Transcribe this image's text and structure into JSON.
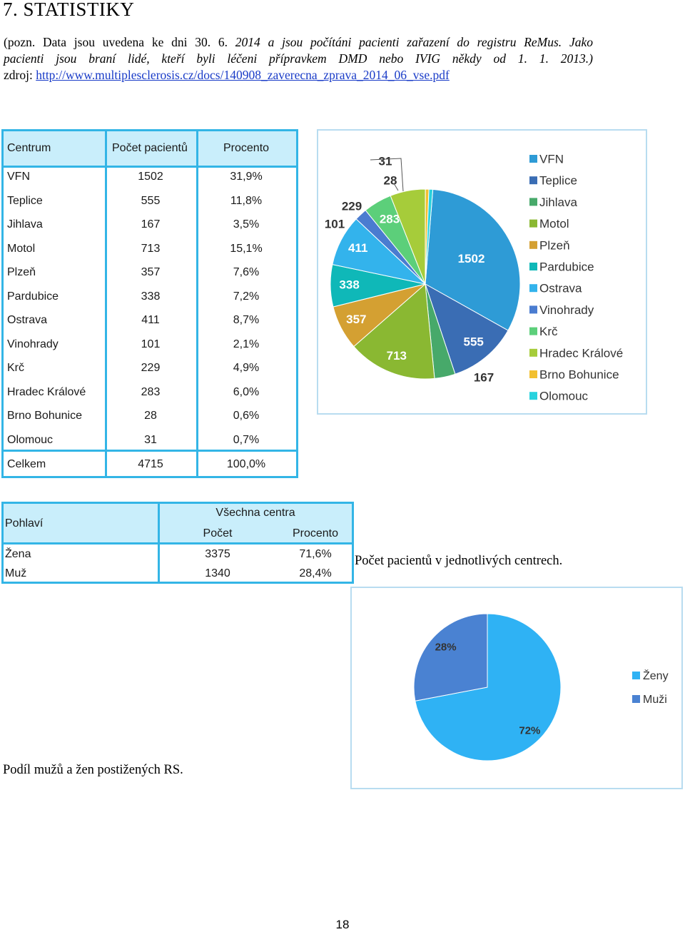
{
  "heading": "7.  STATISTIKY",
  "intro": {
    "line1_plain": "(pozn. Data jsou uvedena ke dni 30. 6. ",
    "line1_italic": "2014 a jsou počítáni pacienti zařazení do registru ReMus. Jako",
    "line2_italic": "pacienti  jsou  braní  lidé,  kteří  byli  léčeni  přípravkem  DMD  nebo  IVIG  někdy  od  1.  1.  2013.)",
    "source_label": "zdroj: ",
    "source_url": "http://www.multiplesclerosis.cz/docs/140908_zaverecna_zprava_2014_06_vse.pdf"
  },
  "centers_table": {
    "headers": [
      "Centrum",
      "Počet pacientů",
      "Procento"
    ],
    "rows": [
      [
        "VFN",
        "1502",
        "31,9%"
      ],
      [
        "Teplice",
        "555",
        "11,8%"
      ],
      [
        "Jihlava",
        "167",
        "3,5%"
      ],
      [
        "Motol",
        "713",
        "15,1%"
      ],
      [
        "Plzeň",
        "357",
        "7,6%"
      ],
      [
        "Pardubice",
        "338",
        "7,2%"
      ],
      [
        "Ostrava",
        "411",
        "8,7%"
      ],
      [
        "Vinohrady",
        "101",
        "2,1%"
      ],
      [
        "Krč",
        "229",
        "4,9%"
      ],
      [
        "Hradec Králové",
        "283",
        "6,0%"
      ],
      [
        "Brno Bohunice",
        "28",
        "0,6%"
      ],
      [
        "Olomouc",
        "31",
        "0,7%"
      ]
    ],
    "total": [
      "Celkem",
      "4715",
      "100,0%"
    ]
  },
  "gender_table": {
    "col1_header": "Pohlaví",
    "group_header": "Všechna centra",
    "sub_headers": [
      "Počet",
      "Procento"
    ],
    "rows": [
      [
        "Žena",
        "3375",
        "71,6%"
      ],
      [
        "Muž",
        "1340",
        "28,4%"
      ]
    ]
  },
  "caption_centers": "Počet pacientů v jednotlivých centrech.",
  "caption_gender": "Podíl mužů a žen postižených RS.",
  "page_number": "18",
  "chart_data": [
    {
      "type": "pie",
      "categories": [
        "VFN",
        "Teplice",
        "Jihlava",
        "Motol",
        "Plzeň",
        "Pardubice",
        "Ostrava",
        "Vinohrady",
        "Krč",
        "Hradec Králové",
        "Brno Bohunice",
        "Olomouc"
      ],
      "values": [
        1502,
        555,
        167,
        713,
        357,
        338,
        411,
        101,
        229,
        283,
        28,
        31
      ],
      "colors": [
        "#2e9bd6",
        "#3a6db4",
        "#47a96a",
        "#8ab832",
        "#d4a032",
        "#0fb8b8",
        "#33b3ec",
        "#4a7cd0",
        "#5ccf7a",
        "#a6cc3a",
        "#f2c030",
        "#27d2de"
      ],
      "legend": "right"
    },
    {
      "type": "pie",
      "categories": [
        "Ženy",
        "Muži"
      ],
      "values": [
        72,
        28
      ],
      "labels": [
        "72%",
        "28%"
      ],
      "colors": [
        "#2fb2f4",
        "#4a82d2"
      ],
      "legend": "right"
    }
  ]
}
